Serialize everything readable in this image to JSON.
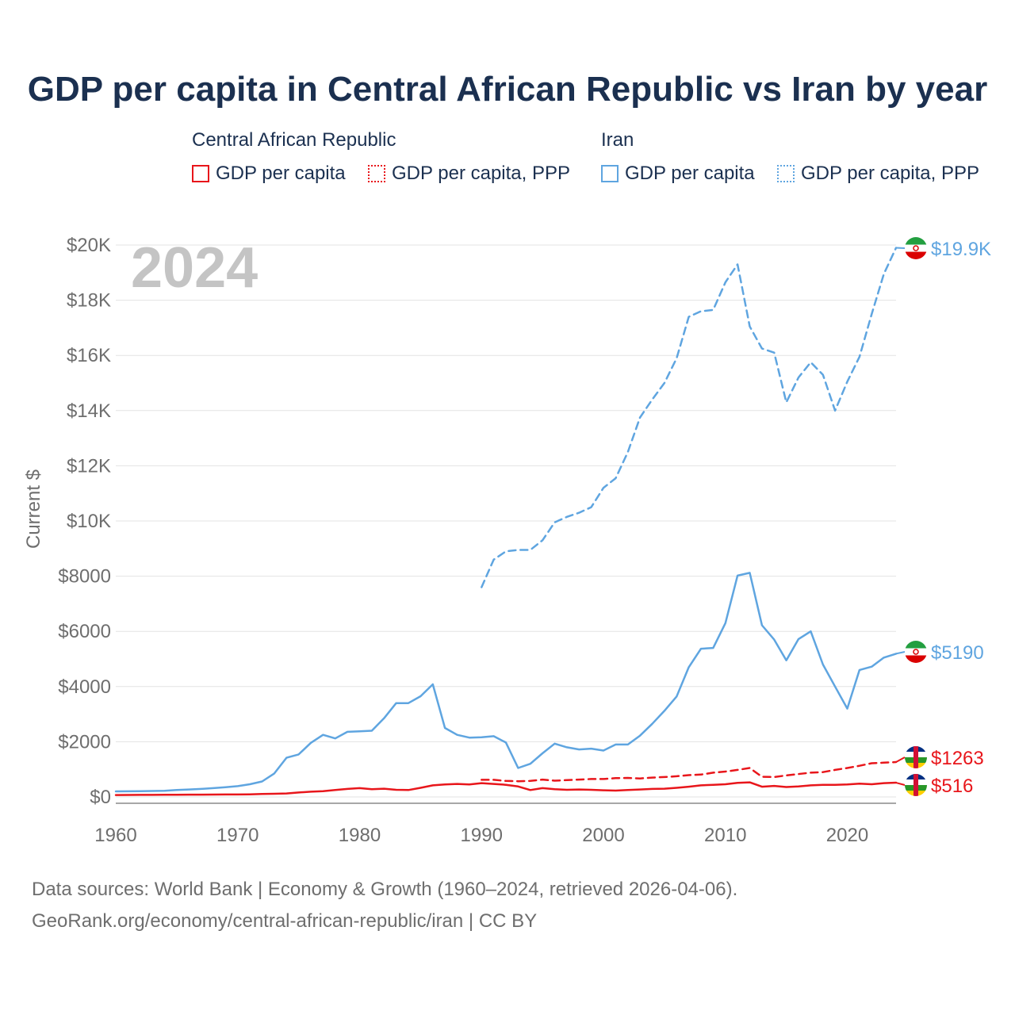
{
  "title": "GDP per capita in Central African Republic vs Iran by year",
  "legend": {
    "groups": [
      {
        "name": "Central African Republic",
        "items": [
          {
            "label": "GDP per capita",
            "color": "#e8161b",
            "style": "solid"
          },
          {
            "label": "GDP per capita, PPP",
            "color": "#e8161b",
            "style": "dotted"
          }
        ]
      },
      {
        "name": "Iran",
        "items": [
          {
            "label": "GDP per capita",
            "color": "#5fa5e0",
            "style": "solid"
          },
          {
            "label": "GDP per capita, PPP",
            "color": "#5fa5e0",
            "style": "dotted"
          }
        ]
      }
    ]
  },
  "year_label": "2024",
  "chart_data": {
    "type": "line",
    "title": "GDP per capita in Central African Republic vs Iran by year",
    "xlabel": "",
    "ylabel": "Current $",
    "xlim": [
      1960,
      2024
    ],
    "ylim": [
      0,
      20000
    ],
    "x_ticks": [
      1960,
      1970,
      1980,
      1990,
      2000,
      2010,
      2020
    ],
    "x_tick_labels": [
      "1960",
      "1970",
      "1980",
      "1990",
      "2000",
      "2010",
      "2020"
    ],
    "y_ticks": [
      0,
      2000,
      4000,
      6000,
      8000,
      10000,
      12000,
      14000,
      16000,
      18000,
      20000
    ],
    "y_tick_labels": [
      "$0",
      "$2000",
      "$4000",
      "$6000",
      "$8000",
      "$10K",
      "$12K",
      "$14K",
      "$16K",
      "$18K",
      "$20K"
    ],
    "grid": true,
    "series": [
      {
        "name": "Iran GDP per capita, PPP",
        "color": "#5fa5e0",
        "dashed": true,
        "end_label": "$19.9K",
        "x": [
          1990,
          1991,
          1992,
          1993,
          1994,
          1995,
          1996,
          1997,
          1998,
          1999,
          2000,
          2001,
          2002,
          2003,
          2004,
          2005,
          2006,
          2007,
          2008,
          2009,
          2010,
          2011,
          2012,
          2013,
          2014,
          2015,
          2016,
          2017,
          2018,
          2019,
          2020,
          2021,
          2022,
          2023,
          2024
        ],
        "values": [
          7600,
          8600,
          8900,
          8950,
          8950,
          9300,
          9950,
          10150,
          10300,
          10500,
          11200,
          11550,
          12500,
          13750,
          14400,
          15000,
          15900,
          17400,
          17600,
          17650,
          18650,
          19300,
          17050,
          16250,
          16100,
          14300,
          15200,
          15750,
          15300,
          14000,
          15050,
          15950,
          17500,
          18950,
          19900
        ]
      },
      {
        "name": "Iran GDP per capita",
        "color": "#5fa5e0",
        "dashed": false,
        "end_label": "$5190",
        "x": [
          1960,
          1961,
          1962,
          1963,
          1964,
          1965,
          1966,
          1967,
          1968,
          1969,
          1970,
          1971,
          1972,
          1973,
          1974,
          1975,
          1976,
          1977,
          1978,
          1979,
          1980,
          1981,
          1982,
          1983,
          1984,
          1985,
          1986,
          1987,
          1988,
          1989,
          1990,
          1991,
          1992,
          1993,
          1994,
          1995,
          1996,
          1997,
          1998,
          1999,
          2000,
          2001,
          2002,
          2003,
          2004,
          2005,
          2006,
          2007,
          2008,
          2009,
          2010,
          2011,
          2012,
          2013,
          2014,
          2015,
          2016,
          2017,
          2018,
          2019,
          2020,
          2021,
          2022,
          2023,
          2024
        ],
        "values": [
          200,
          205,
          210,
          215,
          225,
          250,
          270,
          290,
          320,
          350,
          390,
          460,
          560,
          850,
          1420,
          1540,
          1960,
          2250,
          2120,
          2360,
          2380,
          2400,
          2850,
          3400,
          3400,
          3650,
          4080,
          2500,
          2250,
          2150,
          2160,
          2200,
          1970,
          1050,
          1200,
          1580,
          1930,
          1800,
          1720,
          1750,
          1680,
          1900,
          1900,
          2220,
          2650,
          3120,
          3640,
          4700,
          5370,
          5400,
          6300,
          8020,
          8120,
          6220,
          5700,
          4950,
          5720,
          6000,
          4800,
          4000,
          3200,
          4600,
          4720,
          5050,
          5190
        ]
      },
      {
        "name": "Central African Republic GDP per capita, PPP",
        "color": "#e8161b",
        "dashed": true,
        "end_label": "$1263",
        "x": [
          1990,
          1991,
          1992,
          1993,
          1994,
          1995,
          1996,
          1997,
          1998,
          1999,
          2000,
          2001,
          2002,
          2003,
          2004,
          2005,
          2006,
          2007,
          2008,
          2009,
          2010,
          2011,
          2012,
          2013,
          2014,
          2015,
          2016,
          2017,
          2018,
          2019,
          2020,
          2021,
          2022,
          2023,
          2024
        ],
        "values": [
          620,
          620,
          580,
          570,
          580,
          630,
          590,
          610,
          630,
          650,
          650,
          680,
          690,
          670,
          700,
          720,
          750,
          790,
          810,
          880,
          920,
          980,
          1050,
          730,
          720,
          780,
          830,
          880,
          900,
          980,
          1050,
          1130,
          1220,
          1240,
          1263
        ]
      },
      {
        "name": "Central African Republic GDP per capita",
        "color": "#e8161b",
        "dashed": false,
        "end_label": "$516",
        "x": [
          1960,
          1961,
          1962,
          1963,
          1964,
          1965,
          1966,
          1967,
          1968,
          1969,
          1970,
          1971,
          1972,
          1973,
          1974,
          1975,
          1976,
          1977,
          1978,
          1979,
          1980,
          1981,
          1982,
          1983,
          1984,
          1985,
          1986,
          1987,
          1988,
          1989,
          1990,
          1991,
          1992,
          1993,
          1994,
          1995,
          1996,
          1997,
          1998,
          1999,
          2000,
          2001,
          2002,
          2003,
          2004,
          2005,
          2006,
          2007,
          2008,
          2009,
          2010,
          2011,
          2012,
          2013,
          2014,
          2015,
          2016,
          2017,
          2018,
          2019,
          2020,
          2021,
          2022,
          2023,
          2024
        ],
        "values": [
          70,
          72,
          74,
          76,
          78,
          80,
          82,
          84,
          86,
          88,
          90,
          95,
          105,
          115,
          125,
          160,
          190,
          210,
          250,
          290,
          320,
          280,
          300,
          260,
          250,
          330,
          420,
          450,
          470,
          450,
          500,
          470,
          440,
          380,
          250,
          320,
          280,
          260,
          270,
          260,
          240,
          230,
          250,
          270,
          290,
          300,
          330,
          370,
          420,
          440,
          460,
          510,
          530,
          370,
          400,
          360,
          380,
          420,
          440,
          440,
          450,
          480,
          460,
          500,
          516
        ]
      }
    ]
  },
  "source": {
    "line1": "Data sources: World Bank | Economy & Growth (1960–2024, retrieved 2026-04-06).",
    "line2": "GeoRank.org/economy/central-african-republic/iran | CC BY"
  }
}
